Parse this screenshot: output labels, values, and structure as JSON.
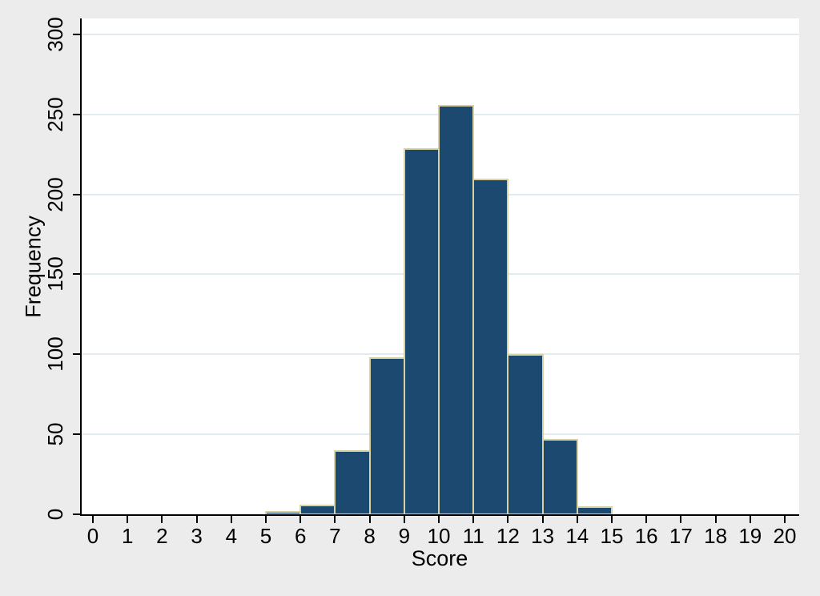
{
  "figure": {
    "background_color": "#ececec",
    "plot_background_color": "#ffffff",
    "axis_color": "#000000",
    "gridline_color": "#e2ebef",
    "bar_fill_color": "#1b4970",
    "bar_border_color": "#d8d2a2",
    "text_color": "#000000"
  },
  "chart_data": {
    "type": "bar",
    "subtype": "histogram",
    "title": "",
    "xlabel": "Score",
    "ylabel": "Frequency",
    "xlim": [
      -0.35,
      20.4
    ],
    "ylim": [
      0,
      310
    ],
    "x_ticks": [
      0,
      1,
      2,
      3,
      4,
      5,
      6,
      7,
      8,
      9,
      10,
      11,
      12,
      13,
      14,
      15,
      16,
      17,
      18,
      19,
      20
    ],
    "y_ticks": [
      0,
      50,
      100,
      150,
      200,
      250,
      300
    ],
    "grid": "horizontal gridlines at y ticks, drawn behind bars",
    "legend_position": "none",
    "bin_width": 1,
    "bins": [
      {
        "x_start": 5,
        "x_end": 6,
        "frequency": 2
      },
      {
        "x_start": 6,
        "x_end": 7,
        "frequency": 6
      },
      {
        "x_start": 7,
        "x_end": 8,
        "frequency": 40
      },
      {
        "x_start": 8,
        "x_end": 9,
        "frequency": 98
      },
      {
        "x_start": 9,
        "x_end": 10,
        "frequency": 229
      },
      {
        "x_start": 10,
        "x_end": 11,
        "frequency": 256
      },
      {
        "x_start": 11,
        "x_end": 12,
        "frequency": 210
      },
      {
        "x_start": 12,
        "x_end": 13,
        "frequency": 100
      },
      {
        "x_start": 13,
        "x_end": 14,
        "frequency": 47
      },
      {
        "x_start": 14,
        "x_end": 15,
        "frequency": 5
      }
    ]
  }
}
